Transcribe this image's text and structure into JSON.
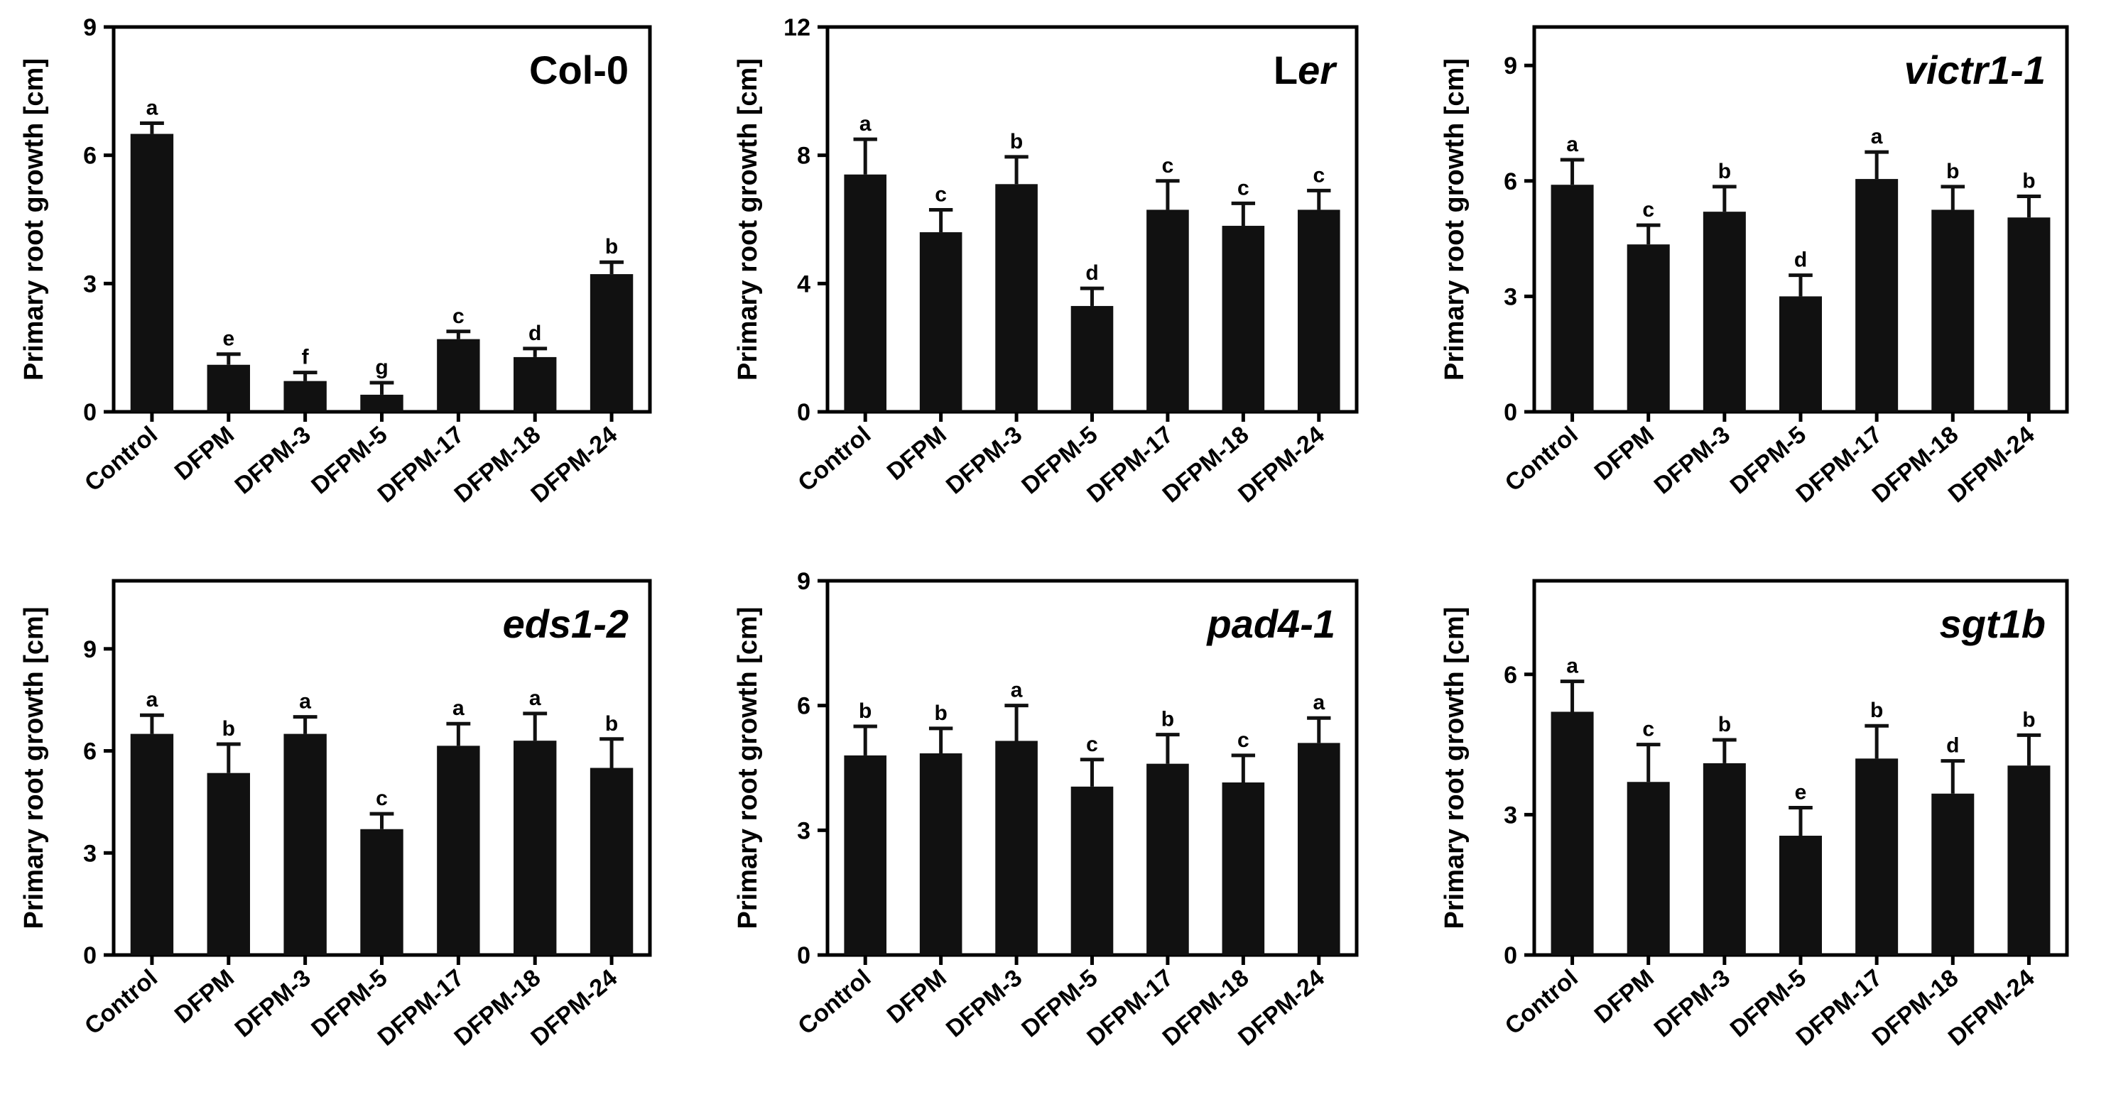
{
  "figure": {
    "bar_color": "#111111",
    "axis_color": "#000000"
  },
  "chart_data": [
    {
      "type": "bar",
      "title": "Col-0",
      "title_parts": [
        {
          "text": "Col-0",
          "italic": false
        }
      ],
      "ylabel": "Primary root growth [cm]",
      "xlabel": "",
      "ylim": [
        0,
        9
      ],
      "yticks": [
        0,
        3,
        6,
        9
      ],
      "categories": [
        "Control",
        "DFPM",
        "DFPM-3",
        "DFPM-5",
        "DFPM-17",
        "DFPM-18",
        "DFPM-24"
      ],
      "values": [
        6.5,
        1.1,
        0.72,
        0.4,
        1.7,
        1.28,
        3.22
      ],
      "errors": [
        0.25,
        0.25,
        0.2,
        0.28,
        0.18,
        0.2,
        0.28
      ],
      "significance": [
        "a",
        "e",
        "f",
        "g",
        "c",
        "d",
        "b"
      ]
    },
    {
      "type": "bar",
      "title": "Ler",
      "title_parts": [
        {
          "text": "L",
          "italic": false
        },
        {
          "text": "er",
          "italic": true
        }
      ],
      "ylabel": "Primary root growth [cm]",
      "xlabel": "",
      "ylim": [
        0,
        12
      ],
      "yticks": [
        0,
        4,
        8,
        12
      ],
      "categories": [
        "Control",
        "DFPM",
        "DFPM-3",
        "DFPM-5",
        "DFPM-17",
        "DFPM-18",
        "DFPM-24"
      ],
      "values": [
        7.4,
        5.6,
        7.1,
        3.3,
        6.3,
        5.8,
        6.3
      ],
      "errors": [
        1.1,
        0.7,
        0.85,
        0.55,
        0.9,
        0.7,
        0.6
      ],
      "significance": [
        "a",
        "c",
        "b",
        "d",
        "c",
        "c",
        "c"
      ]
    },
    {
      "type": "bar",
      "title": "victr1-1",
      "title_parts": [
        {
          "text": "victr1-1",
          "italic": true
        }
      ],
      "ylabel": "Primary root growth [cm]",
      "xlabel": "",
      "ylim": [
        0,
        10
      ],
      "yticks": [
        0,
        3,
        6,
        9
      ],
      "categories": [
        "Control",
        "DFPM",
        "DFPM-3",
        "DFPM-5",
        "DFPM-17",
        "DFPM-18",
        "DFPM-24"
      ],
      "values": [
        5.9,
        4.35,
        5.2,
        3.0,
        6.05,
        5.25,
        5.05
      ],
      "errors": [
        0.65,
        0.5,
        0.65,
        0.55,
        0.7,
        0.6,
        0.55
      ],
      "significance": [
        "a",
        "c",
        "b",
        "d",
        "a",
        "b",
        "b"
      ]
    },
    {
      "type": "bar",
      "title": "eds1-2",
      "title_parts": [
        {
          "text": "eds1-2",
          "italic": true
        }
      ],
      "ylabel": "Primary root growth [cm]",
      "xlabel": "",
      "ylim": [
        0,
        11
      ],
      "yticks": [
        0,
        3,
        6,
        9
      ],
      "categories": [
        "Control",
        "DFPM",
        "DFPM-3",
        "DFPM-5",
        "DFPM-17",
        "DFPM-18",
        "DFPM-24"
      ],
      "values": [
        6.5,
        5.35,
        6.5,
        3.7,
        6.15,
        6.3,
        5.5
      ],
      "errors": [
        0.55,
        0.85,
        0.5,
        0.45,
        0.65,
        0.8,
        0.85
      ],
      "significance": [
        "a",
        "b",
        "a",
        "c",
        "a",
        "a",
        "b"
      ]
    },
    {
      "type": "bar",
      "title": "pad4-1",
      "title_parts": [
        {
          "text": "pad4-1",
          "italic": true
        }
      ],
      "ylabel": "Primary root growth [cm]",
      "xlabel": "",
      "ylim": [
        0,
        9
      ],
      "yticks": [
        0,
        3,
        6,
        9
      ],
      "categories": [
        "Control",
        "DFPM",
        "DFPM-3",
        "DFPM-5",
        "DFPM-17",
        "DFPM-18",
        "DFPM-24"
      ],
      "values": [
        4.8,
        4.85,
        5.15,
        4.05,
        4.6,
        4.15,
        5.1
      ],
      "errors": [
        0.7,
        0.6,
        0.85,
        0.65,
        0.7,
        0.65,
        0.6
      ],
      "significance": [
        "b",
        "b",
        "a",
        "c",
        "b",
        "c",
        "a"
      ]
    },
    {
      "type": "bar",
      "title": "sgt1b",
      "title_parts": [
        {
          "text": "sgt1b",
          "italic": true
        }
      ],
      "ylabel": "Primary root growth [cm]",
      "xlabel": "",
      "ylim": [
        0,
        8
      ],
      "yticks": [
        0,
        3,
        6
      ],
      "categories": [
        "Control",
        "DFPM",
        "DFPM-3",
        "DFPM-5",
        "DFPM-17",
        "DFPM-18",
        "DFPM-24"
      ],
      "values": [
        5.2,
        3.7,
        4.1,
        2.55,
        4.2,
        3.45,
        4.05
      ],
      "errors": [
        0.65,
        0.8,
        0.5,
        0.6,
        0.7,
        0.7,
        0.65
      ],
      "significance": [
        "a",
        "c",
        "b",
        "e",
        "b",
        "d",
        "b"
      ]
    }
  ]
}
